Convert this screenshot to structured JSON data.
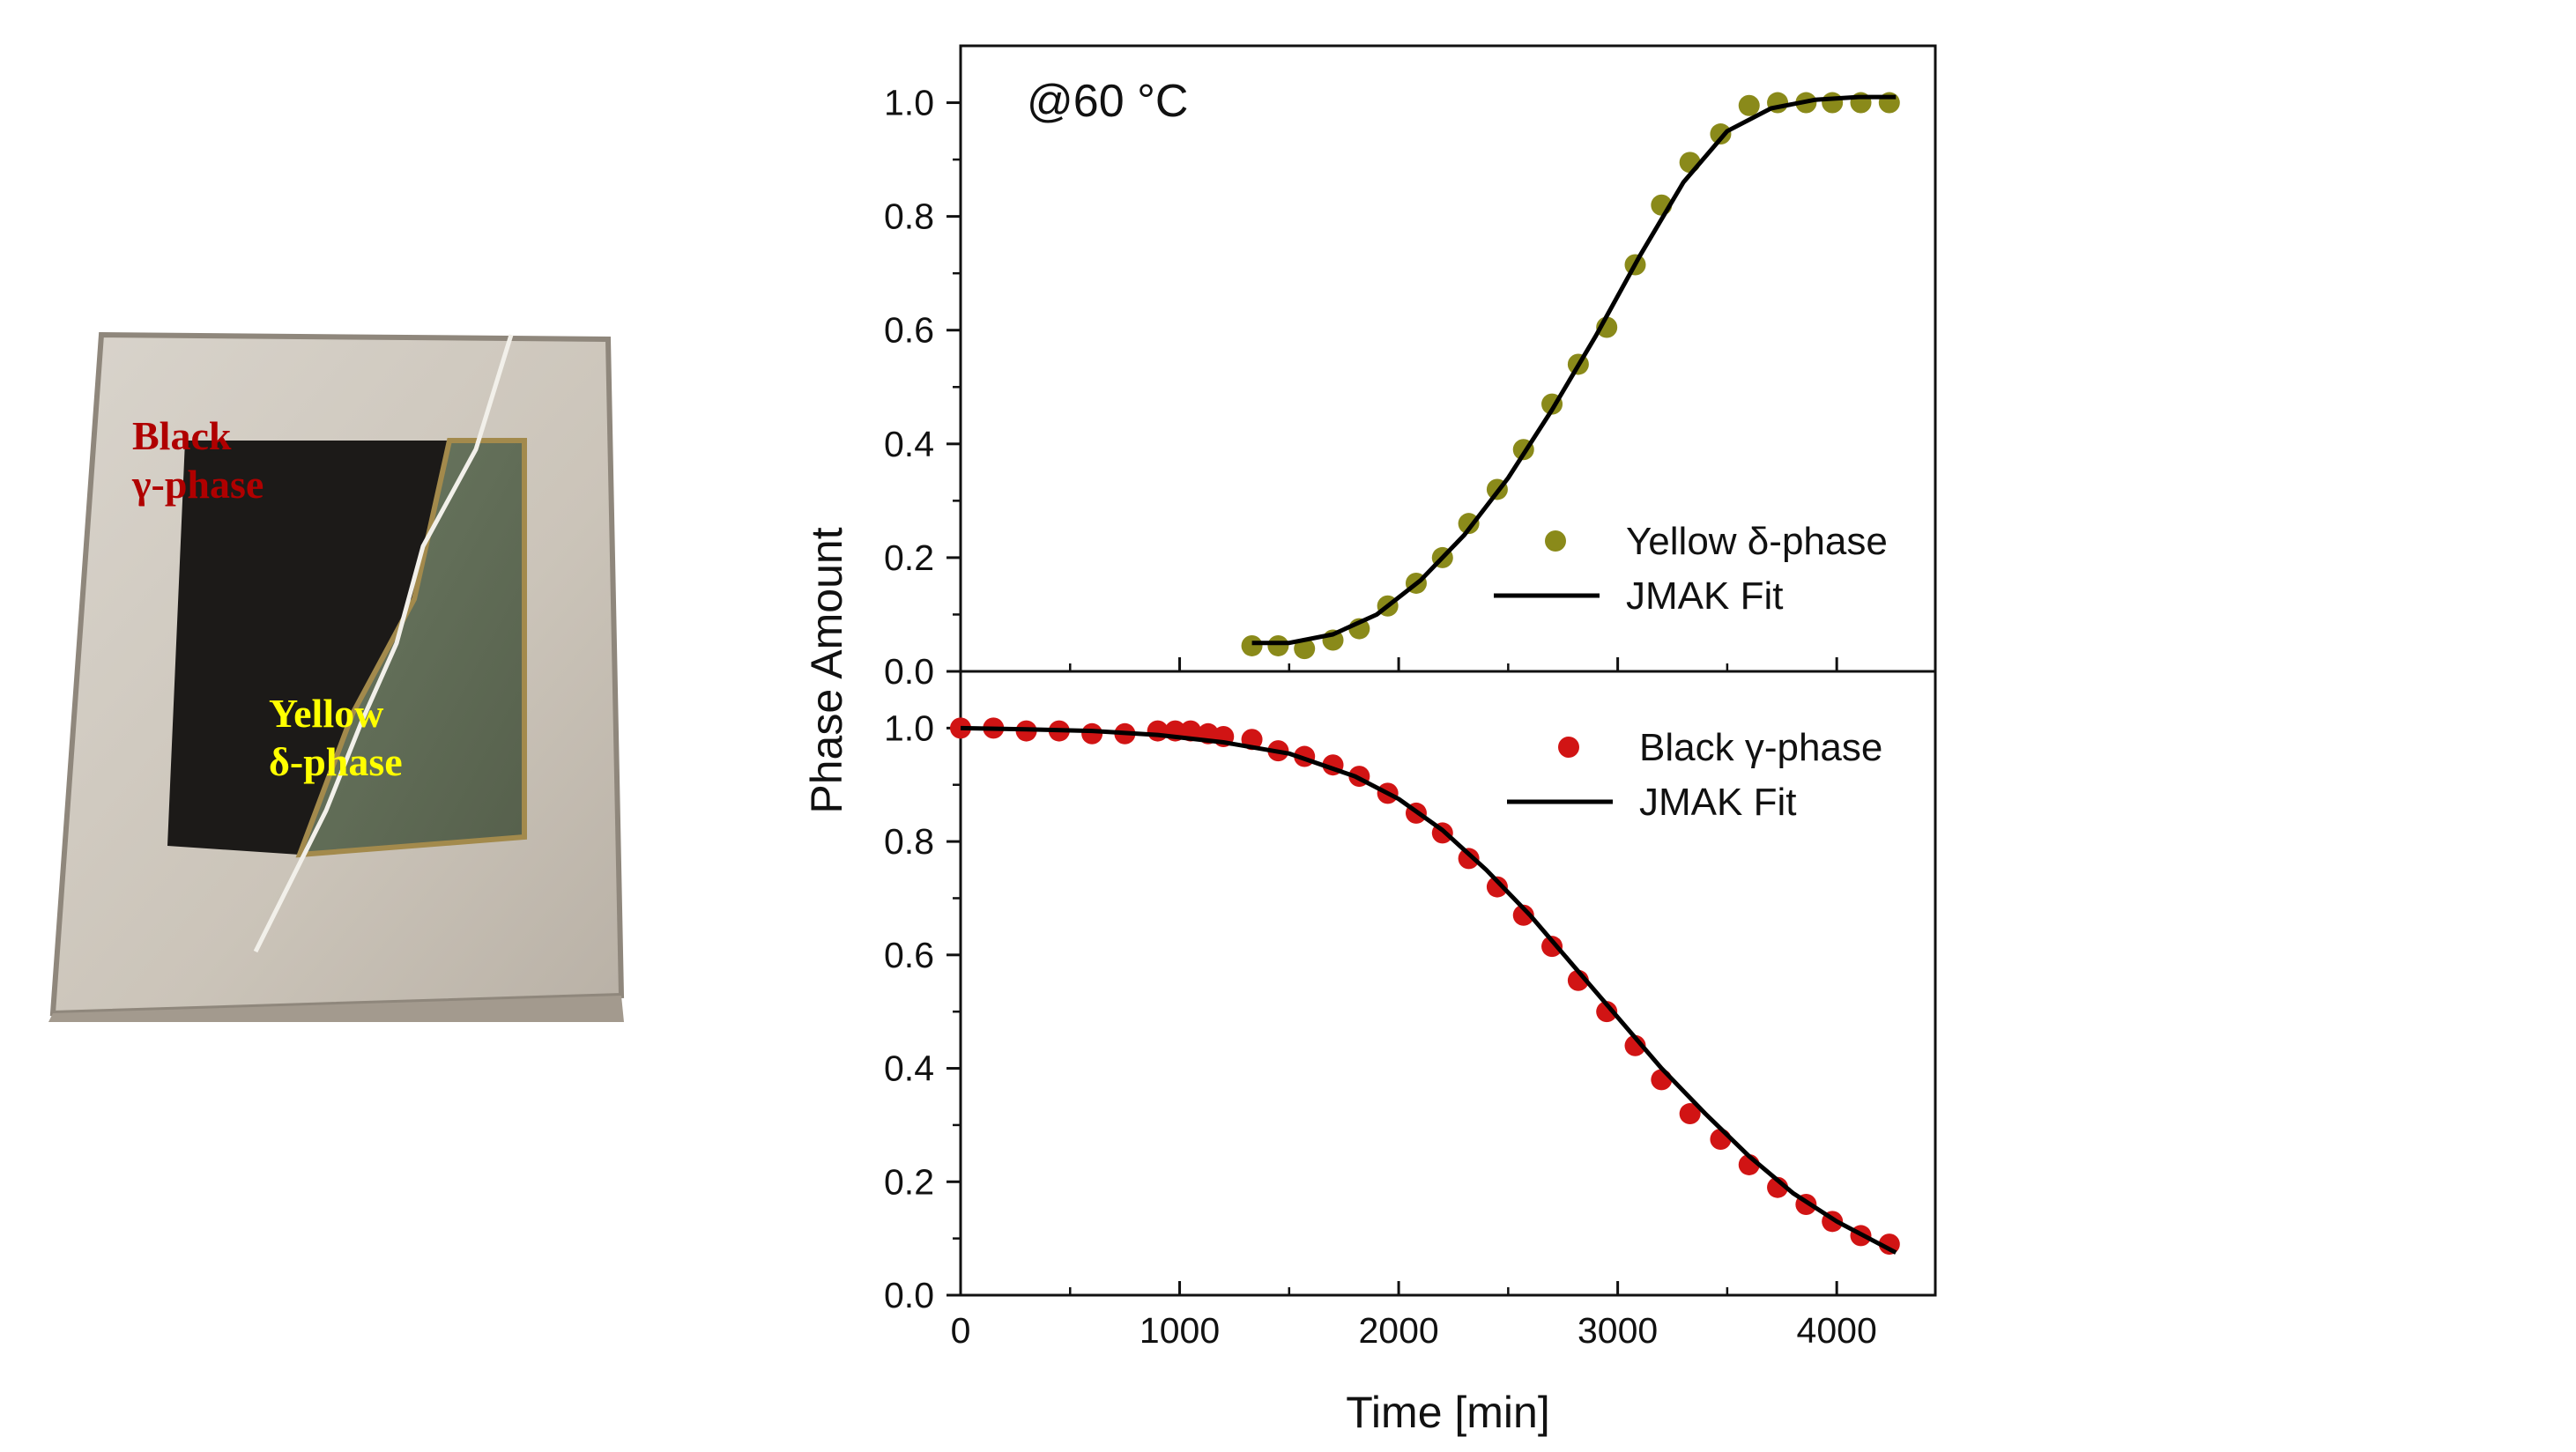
{
  "photo": {
    "label_black_line1": "Black",
    "label_black_line2": "γ-phase",
    "label_yellow_line1": "Yellow",
    "label_yellow_line2": "δ-phase",
    "colors": {
      "black_label": "#b00000",
      "yellow_label": "#ffff00",
      "glass": "#cfc9c0",
      "black_film": "#1c1a18",
      "yellow_film": "#5c6650"
    }
  },
  "chart_data": [
    {
      "type": "scatter",
      "panel": "top",
      "annotation": "@60 °C",
      "xlabel": "Time [min]",
      "ylabel": "Phase Amount",
      "xlim": [
        0,
        4450
      ],
      "ylim": [
        0,
        1.1
      ],
      "yticks": [
        "0.0",
        "0.2",
        "0.4",
        "0.6",
        "0.8",
        "1.0"
      ],
      "grid": false,
      "legend_position": "bottom-right",
      "series": [
        {
          "name": "Yellow δ-phase",
          "kind": "points",
          "color": "#8a8a1a",
          "x": [
            1330,
            1450,
            1570,
            1700,
            1820,
            1950,
            2080,
            2200,
            2320,
            2450,
            2570,
            2700,
            2820,
            2950,
            3080,
            3200,
            3330,
            3470,
            3600,
            3730,
            3860,
            3980,
            4110,
            4240
          ],
          "y": [
            0.045,
            0.045,
            0.04,
            0.055,
            0.075,
            0.115,
            0.155,
            0.2,
            0.26,
            0.32,
            0.39,
            0.47,
            0.54,
            0.605,
            0.715,
            0.82,
            0.895,
            0.945,
            0.995,
            1.0,
            1.0,
            1.0,
            1.0,
            1.0
          ]
        },
        {
          "name": "JMAK Fit",
          "kind": "line",
          "color": "#000000",
          "x": [
            1330,
            1500,
            1700,
            1900,
            2100,
            2300,
            2500,
            2700,
            2900,
            3100,
            3300,
            3500,
            3700,
            3900,
            4100,
            4270
          ],
          "y": [
            0.05,
            0.05,
            0.065,
            0.1,
            0.16,
            0.24,
            0.34,
            0.46,
            0.59,
            0.73,
            0.86,
            0.95,
            0.99,
            1.005,
            1.01,
            1.01
          ]
        }
      ]
    },
    {
      "type": "scatter",
      "panel": "bottom",
      "xlabel": "Time [min]",
      "ylabel": "Phase Amount",
      "xlim": [
        0,
        4450
      ],
      "ylim": [
        0,
        1.1
      ],
      "xticks": [
        "0",
        "1000",
        "2000",
        "3000",
        "4000"
      ],
      "yticks": [
        "0.0",
        "0.2",
        "0.4",
        "0.6",
        "0.8",
        "1.0"
      ],
      "grid": false,
      "legend_position": "top-right",
      "series": [
        {
          "name": "Black γ-phase",
          "kind": "points",
          "color": "#d11414",
          "x": [
            0,
            150,
            300,
            450,
            600,
            750,
            900,
            980,
            1050,
            1130,
            1200,
            1330,
            1450,
            1570,
            1700,
            1820,
            1950,
            2080,
            2200,
            2320,
            2450,
            2570,
            2700,
            2820,
            2950,
            3080,
            3200,
            3330,
            3470,
            3600,
            3730,
            3860,
            3980,
            4110,
            4240
          ],
          "y": [
            1.0,
            1.0,
            0.995,
            0.995,
            0.99,
            0.99,
            0.995,
            0.995,
            0.995,
            0.99,
            0.985,
            0.98,
            0.96,
            0.95,
            0.935,
            0.915,
            0.885,
            0.85,
            0.815,
            0.77,
            0.72,
            0.67,
            0.615,
            0.555,
            0.5,
            0.44,
            0.38,
            0.32,
            0.275,
            0.23,
            0.19,
            0.16,
            0.13,
            0.105,
            0.09
          ]
        },
        {
          "name": "JMAK Fit",
          "kind": "line",
          "color": "#000000",
          "x": [
            0,
            300,
            600,
            900,
            1200,
            1500,
            1800,
            2000,
            2200,
            2400,
            2600,
            2800,
            3000,
            3200,
            3400,
            3600,
            3800,
            4000,
            4270
          ],
          "y": [
            1.0,
            0.998,
            0.995,
            0.988,
            0.975,
            0.955,
            0.915,
            0.875,
            0.82,
            0.75,
            0.67,
            0.58,
            0.49,
            0.4,
            0.32,
            0.245,
            0.18,
            0.13,
            0.075
          ]
        }
      ]
    }
  ]
}
